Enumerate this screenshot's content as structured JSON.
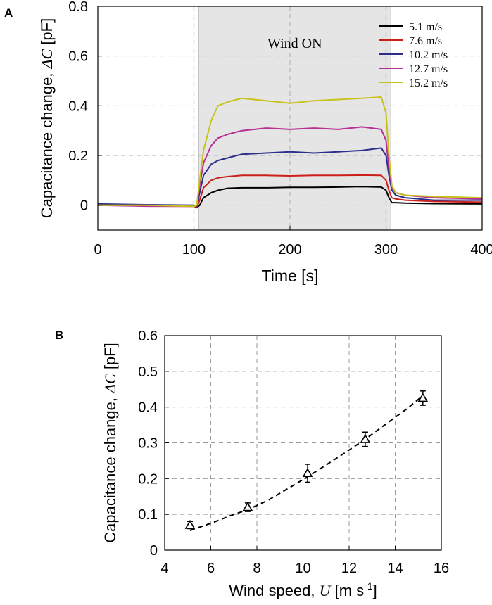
{
  "chart_data": [
    {
      "panel": "A",
      "type": "line",
      "xlabel": "Time [s]",
      "ylabel_prefix": "Capacitance change, ",
      "ylabel_symbol": "ΔC",
      "ylabel_suffix": " [pF]",
      "xlim": [
        0,
        400
      ],
      "ylim": [
        -0.1,
        0.8
      ],
      "xticks": [
        0,
        100,
        200,
        300,
        400
      ],
      "yticks": [
        0,
        0.2,
        0.4,
        0.6,
        0.8
      ],
      "ytick_labels": [
        "0",
        "0.2",
        "0.4",
        "0.6",
        "0.8"
      ],
      "grid": true,
      "shaded_region": {
        "x": [
          105,
          305
        ],
        "label": "Wind ON",
        "color": "#e5e5e5"
      },
      "vertical_dashed_lines": [
        100,
        300
      ],
      "legend_position": "top-right",
      "series": [
        {
          "name": "5.1 m/s",
          "color": "#000000",
          "x": [
            0,
            50,
            100,
            103,
            106,
            110,
            118,
            125,
            135,
            150,
            175,
            200,
            225,
            250,
            275,
            295,
            300,
            303,
            306,
            310,
            320,
            350,
            400
          ],
          "y": [
            0,
            -0.002,
            -0.004,
            -0.01,
            0,
            0.03,
            0.05,
            0.06,
            0.068,
            0.07,
            0.07,
            0.072,
            0.072,
            0.073,
            0.075,
            0.073,
            0.06,
            0.03,
            0.01,
            0.01,
            0.008,
            0.006,
            0.005
          ]
        },
        {
          "name": "7.6 m/s",
          "color": "#cc1f1a",
          "x": [
            0,
            50,
            100,
            103,
            106,
            110,
            118,
            125,
            135,
            150,
            175,
            200,
            225,
            250,
            275,
            295,
            300,
            303,
            306,
            310,
            320,
            350,
            400
          ],
          "y": [
            0,
            -0.003,
            -0.004,
            -0.008,
            0.02,
            0.07,
            0.1,
            0.11,
            0.115,
            0.12,
            0.12,
            0.118,
            0.12,
            0.12,
            0.121,
            0.12,
            0.1,
            0.06,
            0.03,
            0.025,
            0.02,
            0.015,
            0.012
          ]
        },
        {
          "name": "10.2 m/s",
          "color": "#2b2f8a",
          "x": [
            0,
            50,
            100,
            103,
            106,
            110,
            118,
            125,
            135,
            150,
            175,
            200,
            225,
            250,
            275,
            295,
            300,
            303,
            306,
            310,
            320,
            350,
            400
          ],
          "y": [
            0.005,
            0.002,
            0,
            -0.005,
            0.05,
            0.12,
            0.165,
            0.18,
            0.19,
            0.205,
            0.21,
            0.215,
            0.21,
            0.215,
            0.22,
            0.23,
            0.2,
            0.12,
            0.06,
            0.04,
            0.03,
            0.02,
            0.02
          ]
        },
        {
          "name": "12.7 m/s",
          "color": "#b52f97",
          "x": [
            0,
            50,
            100,
            103,
            106,
            110,
            118,
            125,
            135,
            150,
            175,
            200,
            225,
            250,
            275,
            295,
            300,
            303,
            306,
            310,
            320,
            350,
            400
          ],
          "y": [
            0,
            -0.004,
            -0.005,
            0,
            0.08,
            0.17,
            0.24,
            0.27,
            0.285,
            0.3,
            0.31,
            0.305,
            0.31,
            0.305,
            0.315,
            0.305,
            0.26,
            0.15,
            0.07,
            0.05,
            0.04,
            0.03,
            0.025
          ]
        },
        {
          "name": "15.2 m/s",
          "color": "#c8c21a",
          "x": [
            0,
            50,
            100,
            103,
            106,
            110,
            118,
            125,
            135,
            150,
            175,
            200,
            225,
            250,
            275,
            295,
            300,
            303,
            306,
            310,
            320,
            350,
            400
          ],
          "y": [
            0,
            0,
            -0.005,
            0,
            0.1,
            0.22,
            0.34,
            0.4,
            0.415,
            0.43,
            0.42,
            0.41,
            0.42,
            0.425,
            0.43,
            0.435,
            0.37,
            0.2,
            0.08,
            0.05,
            0.04,
            0.035,
            0.03
          ]
        }
      ]
    },
    {
      "panel": "B",
      "type": "scatter",
      "xlabel_prefix": "Wind speed, ",
      "xlabel_symbol": "U",
      "xlabel_unit": " [m s",
      "xlabel_sup": "-1",
      "xlabel_close": "]",
      "ylabel_prefix": "Capacitance change, ",
      "ylabel_symbol": "ΔC",
      "ylabel_suffix": " [pF]",
      "xlim": [
        4,
        16
      ],
      "ylim": [
        0,
        0.6
      ],
      "xticks": [
        4,
        6,
        8,
        10,
        12,
        14,
        16
      ],
      "yticks": [
        0,
        0.1,
        0.2,
        0.3,
        0.4,
        0.5,
        0.6
      ],
      "ytick_labels": [
        "0",
        "0.1",
        "0.2",
        "0.3",
        "0.4",
        "0.5",
        "0.6"
      ],
      "grid": true,
      "marker": "triangle",
      "points": [
        {
          "x": 5.1,
          "y": 0.07,
          "err": 0.01
        },
        {
          "x": 7.6,
          "y": 0.12,
          "err": 0.012
        },
        {
          "x": 10.2,
          "y": 0.215,
          "err": 0.025
        },
        {
          "x": 12.7,
          "y": 0.31,
          "err": 0.02
        },
        {
          "x": 15.2,
          "y": 0.425,
          "err": 0.02
        }
      ],
      "fit": {
        "style": "dashed",
        "x": [
          5.1,
          6,
          7,
          7.6,
          8.5,
          9.5,
          10.2,
          11,
          12,
          12.7,
          13.5,
          14.5,
          15.2
        ],
        "y": [
          0.055,
          0.075,
          0.1,
          0.113,
          0.14,
          0.178,
          0.205,
          0.238,
          0.28,
          0.31,
          0.348,
          0.395,
          0.432
        ]
      }
    }
  ],
  "panel_labels": {
    "a": "A",
    "b": "B"
  }
}
